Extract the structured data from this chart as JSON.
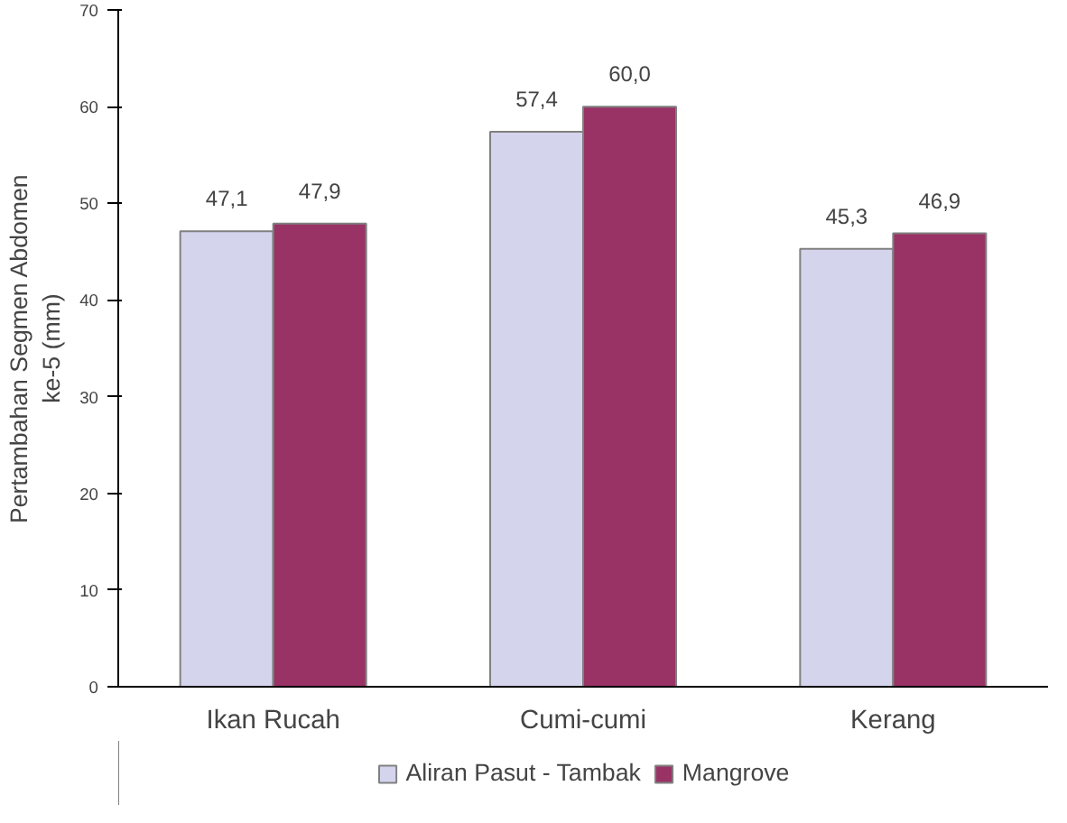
{
  "chart_data": {
    "type": "bar",
    "ylabel": "Pertambahan Segmen Abdomen\nke-5 (mm)",
    "categories": [
      "Ikan Rucah",
      "Cumi-cumi",
      "Kerang"
    ],
    "series": [
      {
        "name": "Aliran Pasut - Tambak",
        "color": "#d4d4ec",
        "values": [
          47.1,
          57.4,
          45.3
        ],
        "value_labels": [
          "47,1",
          "57,4",
          "45,3"
        ]
      },
      {
        "name": "Mangrove",
        "color": "#993366",
        "values": [
          47.9,
          60.0,
          46.9
        ],
        "value_labels": [
          "47,9",
          "60,0",
          "46,9"
        ]
      }
    ],
    "ylim": [
      0,
      70
    ],
    "yticks": [
      0,
      10,
      20,
      30,
      40,
      50,
      60,
      70
    ],
    "grid": false,
    "legend": "bottom"
  }
}
